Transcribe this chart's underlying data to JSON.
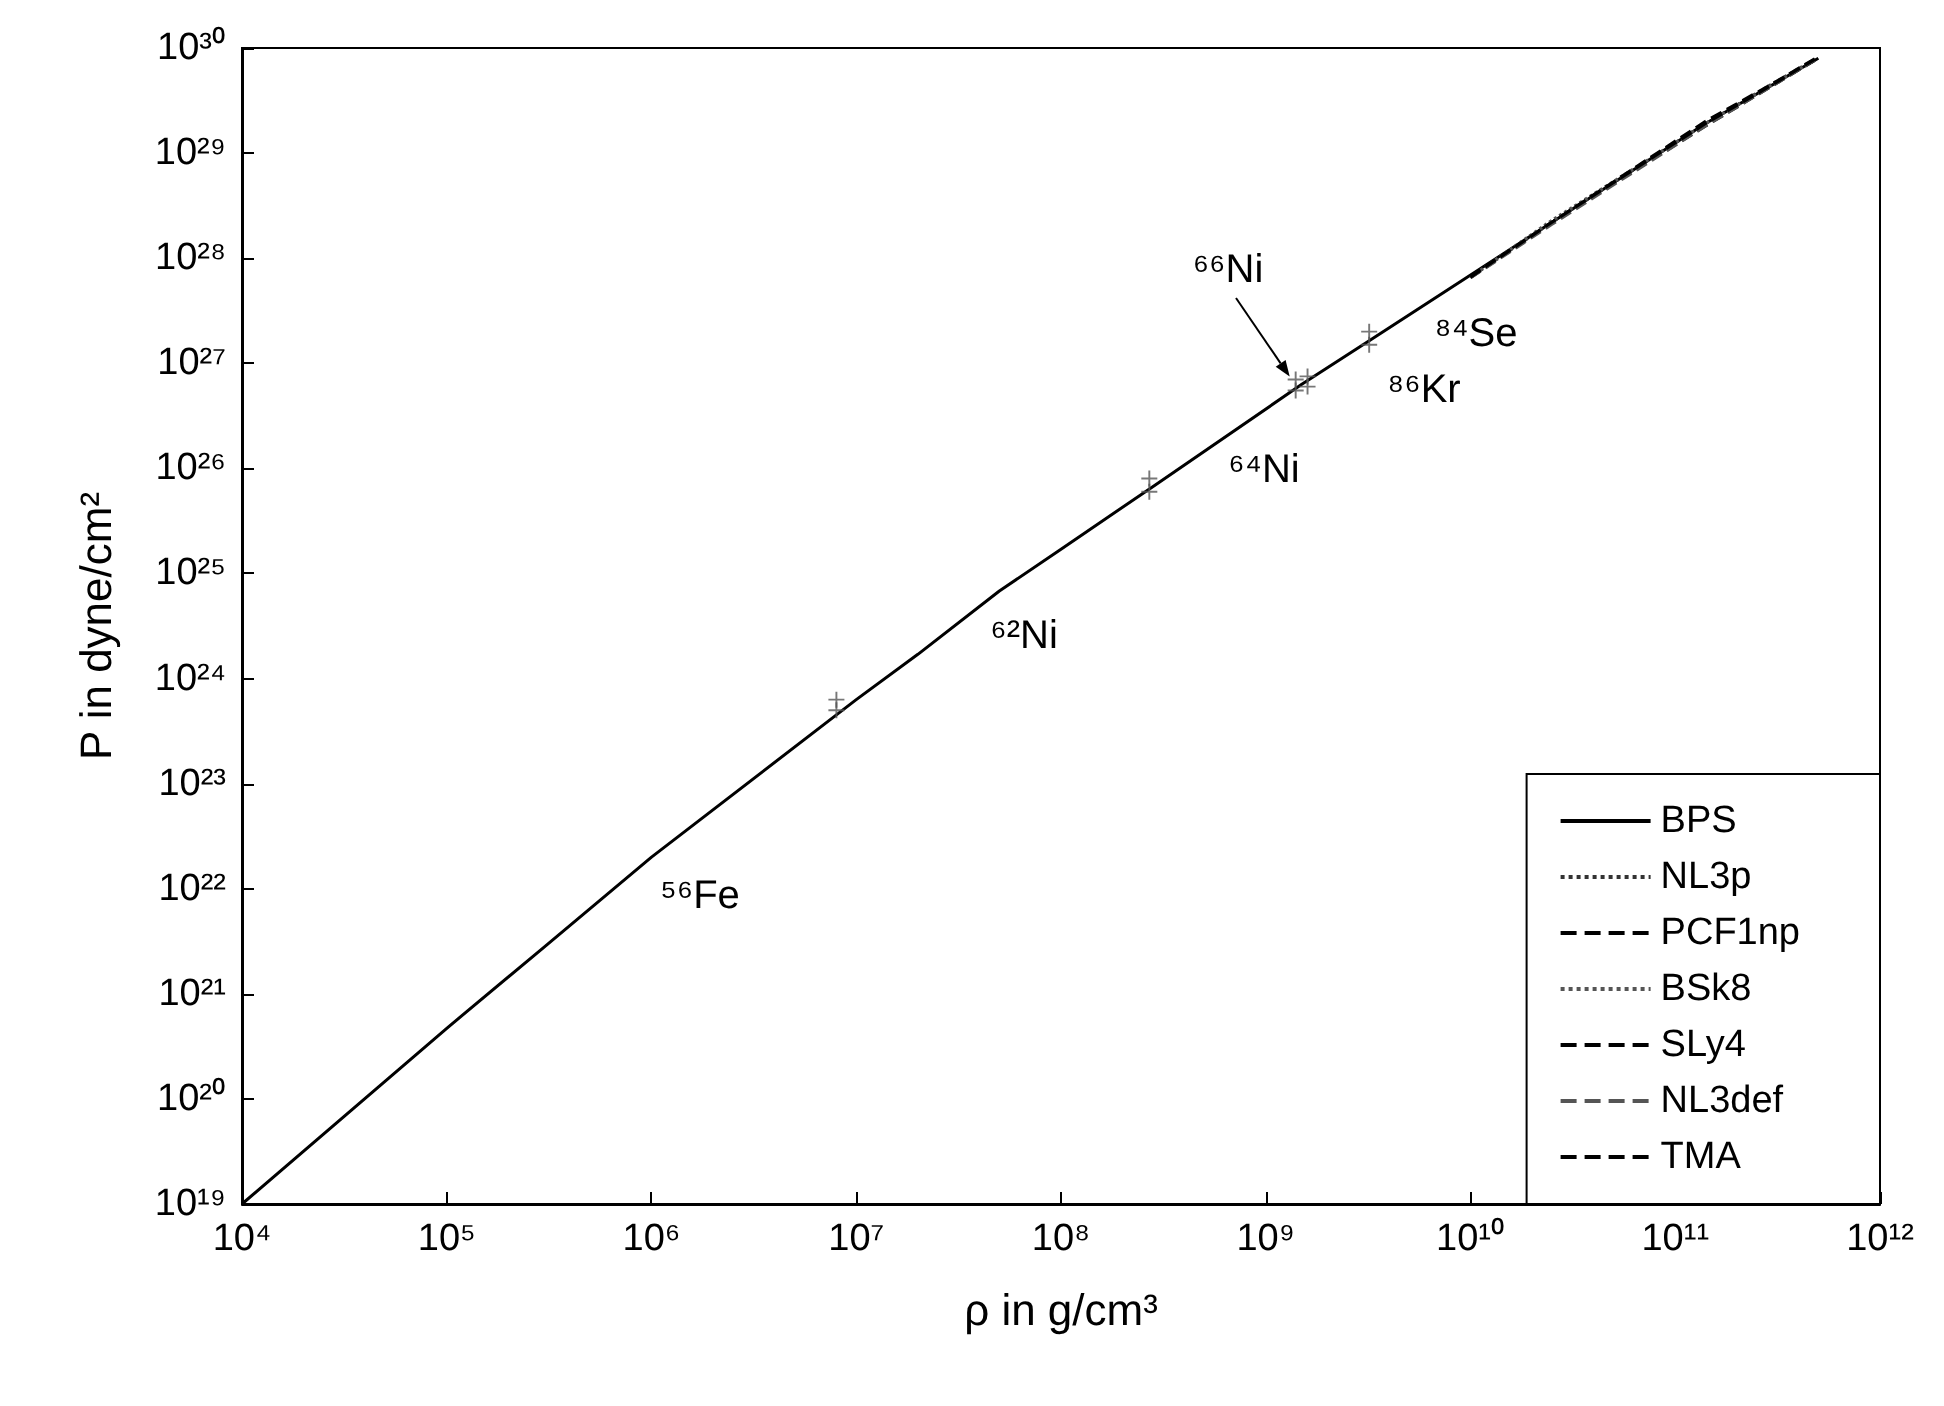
{
  "chart_data": {
    "type": "line",
    "xlabel": "ρ in g/cm³",
    "ylabel": "P in dyne/cm²",
    "log": "xy",
    "grid": false,
    "legend": "bottom right",
    "marker": "none",
    "xlim": [
      10000,
      1000000000000
    ],
    "ylim": [
      1e+19,
      1e+30
    ],
    "xticks": [
      {
        "value": 10000.0,
        "label": "10⁴"
      },
      {
        "value": 100000.0,
        "label": "10⁵"
      },
      {
        "value": 1000000.0,
        "label": "10⁶"
      },
      {
        "value": 10000000.0,
        "label": "10⁷"
      },
      {
        "value": 100000000.0,
        "label": "10⁸"
      },
      {
        "value": 1000000000.0,
        "label": "10⁹"
      },
      {
        "value": 10000000000.0,
        "label": "10¹⁰"
      },
      {
        "value": 100000000000.0,
        "label": "10¹¹"
      },
      {
        "value": 1000000000000.0,
        "label": "10¹²"
      }
    ],
    "yticks": [
      {
        "value": 1e+19,
        "label": "10¹⁹"
      },
      {
        "value": 1e+20,
        "label": "10²⁰"
      },
      {
        "value": 1e+21,
        "label": "10²¹"
      },
      {
        "value": 1e+22,
        "label": "10²²"
      },
      {
        "value": 1e+23,
        "label": "10²³"
      },
      {
        "value": 1e+24,
        "label": "10²⁴"
      },
      {
        "value": 1e+25,
        "label": "10²⁵"
      },
      {
        "value": 1e+26,
        "label": "10²⁶"
      },
      {
        "value": 1e+27,
        "label": "10²⁷"
      },
      {
        "value": 1e+28,
        "label": "10²⁸"
      },
      {
        "value": 1e+29,
        "label": "10²⁹"
      },
      {
        "value": 1e+30,
        "label": "10³⁰"
      }
    ],
    "series": [
      {
        "name": "BPS",
        "color": "#000000",
        "line_style": "solid",
        "x": [
          10000.0,
          100000.0,
          300000.0,
          1000000.0,
          10000000.0,
          20000000.0,
          50000000.0,
          100000000.0,
          290000000.0,
          1500000000.0,
          3300000000.0,
          25000000000.0,
          140000000000.0,
          500000000000.0
        ],
        "values": [
          1e+19,
          4.7e+20,
          2.8e+21,
          2e+22,
          6.3e+23,
          1.7e+24,
          6.8e+24,
          1.7e+25,
          7e+25,
          6.3e+26,
          1.7e+27,
          2.2e+28,
          1.9e+29,
          8e+29
        ]
      },
      {
        "name": "NL3p",
        "color": "#333333",
        "line_style": "dotted",
        "x": [
          10000000000.0,
          25000000000.0,
          140000000000.0,
          300000000000.0,
          480000000000.0
        ],
        "values": [
          6.6e+27,
          2.2e+28,
          1.9e+29,
          4.6e+29,
          7.8e+29
        ]
      },
      {
        "name": "PCF1np",
        "color": "#000000",
        "line_style": "dashed",
        "x": [
          10000000000.0,
          25000000000.0,
          140000000000.0,
          300000000000.0,
          480000000000.0
        ],
        "values": [
          6.5e+27,
          2.2e+28,
          1.8e+29,
          4.4e+29,
          7.6e+29
        ]
      },
      {
        "name": "BSk8",
        "color": "#555555",
        "line_style": "dotted",
        "x": [
          10000000000.0,
          25000000000.0,
          140000000000.0,
          300000000000.0,
          480000000000.0
        ],
        "values": [
          6.6e+27,
          2.3e+28,
          1.9e+29,
          4.5e+29,
          7.7e+29
        ]
      },
      {
        "name": "SLy4",
        "color": "#000000",
        "line_style": "dashed",
        "x": [
          10000000000.0,
          25000000000.0,
          140000000000.0,
          300000000000.0,
          480000000000.0
        ],
        "values": [
          6.7e+27,
          2.2e+28,
          2e+29,
          4.6e+29,
          7.9e+29
        ]
      },
      {
        "name": "NL3def",
        "color": "#555555",
        "line_style": "dashed",
        "x": [
          10000000000.0,
          25000000000.0,
          140000000000.0,
          300000000000.0,
          480000000000.0
        ],
        "values": [
          6.5e+27,
          2.1e+28,
          1.8e+29,
          4.4e+29,
          7.7e+29
        ]
      },
      {
        "name": "TMA",
        "color": "#000000",
        "line_style": "dashed",
        "x": [
          10000000000.0,
          25000000000.0,
          140000000000.0,
          300000000000.0,
          480000000000.0
        ],
        "values": [
          6.6e+27,
          2.2e+28,
          1.9e+29,
          4.5e+29,
          7.8e+29
        ]
      },
      {
        "type": "scatter",
        "marker": "cross",
        "color": "#555555",
        "x": [
          8000000.0,
          8000000.0,
          270000000.0,
          270000000.0,
          1400000000.0,
          1400000000.0,
          1600000000.0,
          1600000000.0,
          3200000000.0,
          3200000000.0
        ],
        "values": [
          5e+23,
          6.3e+23,
          6e+25,
          8e+25,
          5.5e+26,
          7e+26,
          6e+26,
          7.5e+26,
          1.5e+27,
          2e+27
        ]
      }
    ],
    "annotations": [
      "⁵⁶Fe",
      "⁶²Ni",
      "⁶⁴Ni",
      {
        "text": "⁶⁶Ni",
        "x": 1400000000.0,
        "y": 6e+26
      },
      "⁸⁶Kr",
      "⁸⁴Se"
    ]
  }
}
